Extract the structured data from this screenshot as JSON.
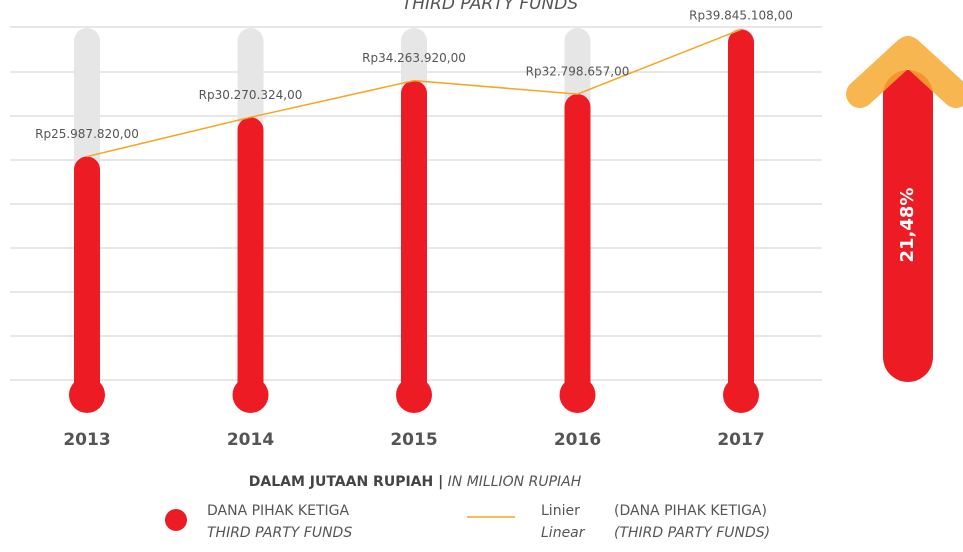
{
  "chart_data": {
    "type": "bar",
    "title": "THIRD PARTY FUNDS",
    "categories": [
      "2013",
      "2014",
      "2015",
      "2016",
      "2017"
    ],
    "values": [
      25987820,
      30270324,
      34263920,
      32798657,
      39845108
    ],
    "value_labels": [
      "Rp25.987.820,00",
      "Rp30.270.324,00",
      "Rp34.263.920,00",
      "Rp32.798.657,00",
      "Rp39.845.108,00"
    ],
    "color": "#ed1c24",
    "track_color": "#e6e6e6",
    "ylim": [
      0,
      40000000
    ],
    "x_label": "DALAM JUTAAN RUPIAH |",
    "x_label_en": "IN MILLION RUPIAH",
    "legend": {
      "name": "DANA PIHAK KETIGA",
      "name_en": "THIRD PARTY FUNDS"
    },
    "trendline": {
      "color": "#f5a623",
      "name": "Linier",
      "name_en": "Linear",
      "series": "(DANA PIHAK KETIGA)",
      "series_en": "(THIRD PARTY FUNDS)"
    },
    "annotation": {
      "text": "21,48%",
      "arrow_color": "#f7a933"
    }
  }
}
